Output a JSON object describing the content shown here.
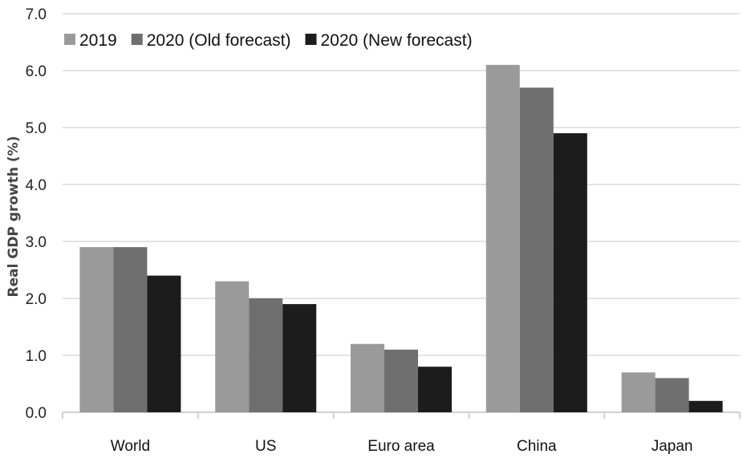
{
  "chart_data": {
    "type": "bar",
    "ylabel": "Real GDP growth (%)",
    "xlabel": "",
    "ylim": [
      0,
      7
    ],
    "yticks": [
      "0.0",
      "1.0",
      "2.0",
      "3.0",
      "4.0",
      "5.0",
      "6.0",
      "7.0"
    ],
    "categories": [
      "World",
      "US",
      "Euro area",
      "China",
      "Japan"
    ],
    "series": [
      {
        "name": "2019",
        "color": "#9a9a9a",
        "values": [
          2.9,
          2.3,
          1.2,
          6.1,
          0.7
        ]
      },
      {
        "name": "2020 (Old forecast)",
        "color": "#6f6f6f",
        "values": [
          2.9,
          2.0,
          1.1,
          5.7,
          0.6
        ]
      },
      {
        "name": "2020 (New forecast)",
        "color": "#1c1c1c",
        "values": [
          2.4,
          1.9,
          0.8,
          4.9,
          0.2
        ]
      }
    ],
    "grid": true,
    "legend_position": "top-left"
  }
}
